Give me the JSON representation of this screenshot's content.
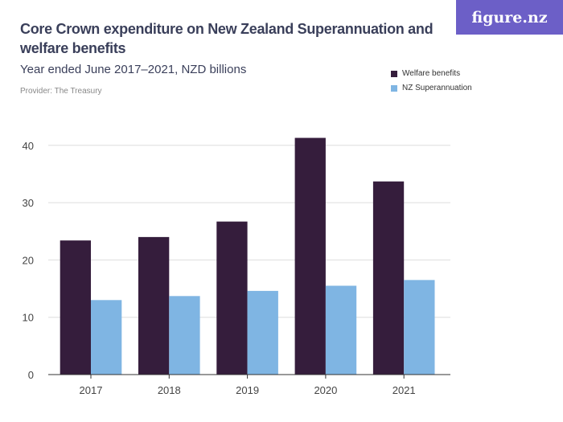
{
  "logo": "figure.nz",
  "chart_data": {
    "type": "bar",
    "title": "Core Crown expenditure on New Zealand Superannuation and welfare benefits",
    "subtitle": "Year ended June 2017–2021, NZD billions",
    "provider": "Provider: The Treasury",
    "categories": [
      "2017",
      "2018",
      "2019",
      "2020",
      "2021"
    ],
    "series": [
      {
        "name": "Welfare benefits",
        "color": "#351d3c",
        "values": [
          23.4,
          24.0,
          26.7,
          41.3,
          33.7
        ]
      },
      {
        "name": "NZ Superannuation",
        "color": "#7fb5e3",
        "values": [
          13.0,
          13.7,
          14.6,
          15.5,
          16.5
        ]
      }
    ],
    "yticks": [
      "0",
      "10",
      "20",
      "30",
      "40"
    ],
    "ylim": [
      0,
      40
    ],
    "grid": true,
    "legend": "top-right"
  }
}
